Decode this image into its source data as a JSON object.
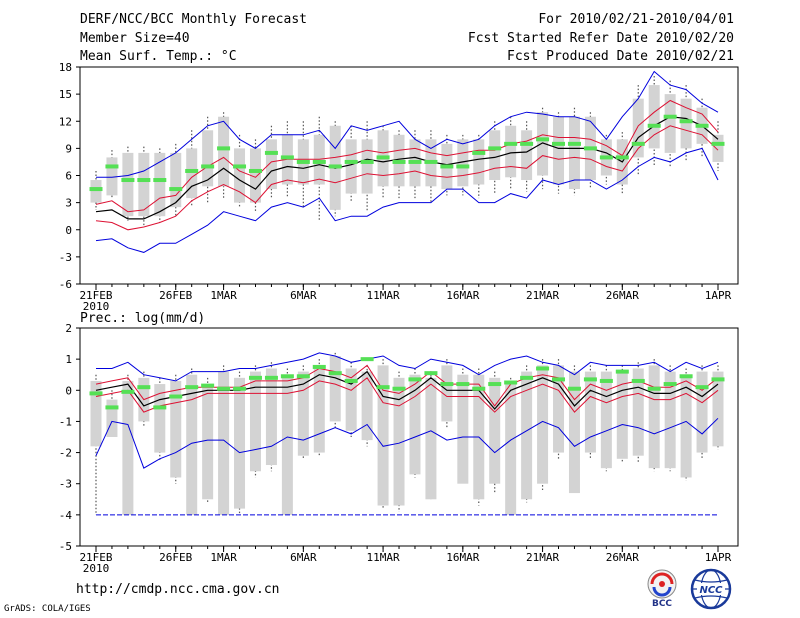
{
  "header": {
    "title": "DERF/NCC/BCC Monthly Forecast",
    "member_size": "Member Size=40",
    "variable": "Mean Surf. Temp.: °C",
    "period": "For 2010/02/21-2010/04/01",
    "started": "Fcst Started Refer Date 2010/02/20",
    "produced": "Fcst Produced Date 2010/02/21"
  },
  "footer": {
    "url": "http://cmdp.ncc.cma.gov.cn",
    "grads": "GrADS: COLA/IGES",
    "logo_bcc": "BCC",
    "logo_ncc": "NCC"
  },
  "colors": {
    "box": "#d3d3d3",
    "whisker": "#555555",
    "median": "#55e055",
    "mean": "#000000",
    "sd": "#dd1133",
    "minmax": "#0000dd",
    "frame": "#000000"
  },
  "chart_data": [
    {
      "type": "box-ensemble",
      "title": "Mean Surf. Temp.: °C",
      "ylim": [
        -6,
        18
      ],
      "yticks": [
        "18",
        "15",
        "12",
        "9",
        "6",
        "3",
        "0",
        "-3",
        "-6"
      ],
      "xtick_labels": [
        {
          "day": 0,
          "label": "21FEB",
          "sub": "2010"
        },
        {
          "day": 5,
          "label": "26FEB"
        },
        {
          "day": 8,
          "label": "1MAR"
        },
        {
          "day": 13,
          "label": "6MAR"
        },
        {
          "day": 18,
          "label": "11MAR"
        },
        {
          "day": 23,
          "label": "16MAR"
        },
        {
          "day": 28,
          "label": "21MAR"
        },
        {
          "day": 33,
          "label": "26MAR"
        },
        {
          "day": 39,
          "label": "1APR"
        }
      ],
      "box_low": [
        3.0,
        3.8,
        1.5,
        1.5,
        1.5,
        2.5,
        3.5,
        4.8,
        4.8,
        3.0,
        3.0,
        4.5,
        5.0,
        5.0,
        5.0,
        2.2,
        4.0,
        4.0,
        4.8,
        4.8,
        4.8,
        4.8,
        4.5,
        4.8,
        5.0,
        5.5,
        5.8,
        5.5,
        6.0,
        5.0,
        4.5,
        5.5,
        6.0,
        5.0,
        8.0,
        9.0,
        8.5,
        9.0,
        9.5,
        7.5
      ],
      "box_high": [
        5.5,
        8.0,
        8.5,
        8.5,
        8.5,
        8.5,
        9.0,
        11.0,
        12.5,
        9.0,
        9.0,
        10.0,
        10.5,
        10.0,
        10.5,
        11.5,
        10.0,
        10.0,
        11.0,
        10.5,
        10.0,
        10.0,
        9.5,
        10.0,
        10.0,
        11.0,
        11.5,
        11.0,
        13.0,
        12.5,
        12.5,
        12.5,
        10.0,
        10.0,
        14.5,
        16.0,
        15.0,
        14.5,
        13.5,
        10.5
      ],
      "whisker_low": [
        2.2,
        3.5,
        1.0,
        0.5,
        0.8,
        1.5,
        2.5,
        3.0,
        3.5,
        2.5,
        2.0,
        3.5,
        3.5,
        2.5,
        1.0,
        1.5,
        3.0,
        2.0,
        3.5,
        3.5,
        3.5,
        3.0,
        3.8,
        3.8,
        3.5,
        4.0,
        4.5,
        4.2,
        4.5,
        4.0,
        3.8,
        4.5,
        5.0,
        4.0,
        6.0,
        7.0,
        7.0,
        7.5,
        8.0,
        6.5
      ],
      "whisker_high": [
        6.5,
        8.8,
        9.2,
        9.2,
        9.0,
        9.5,
        11.0,
        12.5,
        13.0,
        10.5,
        10.0,
        11.5,
        12.0,
        12.0,
        12.5,
        12.0,
        11.5,
        12.0,
        11.5,
        11.0,
        11.0,
        11.0,
        10.5,
        10.5,
        10.5,
        12.0,
        12.5,
        12.0,
        13.5,
        13.0,
        13.5,
        13.0,
        10.5,
        10.8,
        16.0,
        17.0,
        16.5,
        16.0,
        14.5,
        12.0
      ],
      "median": [
        4.5,
        7.0,
        5.5,
        5.5,
        5.5,
        4.5,
        6.5,
        7.0,
        9.0,
        7.0,
        6.5,
        8.5,
        8.0,
        7.5,
        7.5,
        7.0,
        7.5,
        7.5,
        8.0,
        7.5,
        7.5,
        7.5,
        7.0,
        7.0,
        8.5,
        9.0,
        9.5,
        9.5,
        10.0,
        9.5,
        9.5,
        9.0,
        8.0,
        8.0,
        9.5,
        11.5,
        12.5,
        12.0,
        11.5,
        9.5
      ],
      "mean": [
        2.0,
        2.2,
        1.2,
        1.2,
        2.0,
        3.0,
        4.8,
        5.5,
        6.8,
        5.5,
        4.5,
        6.5,
        7.0,
        6.8,
        7.2,
        6.8,
        7.2,
        7.8,
        7.5,
        7.8,
        8.0,
        7.5,
        7.2,
        7.5,
        7.8,
        8.0,
        8.5,
        8.6,
        9.6,
        9.0,
        9.0,
        9.0,
        8.5,
        7.5,
        10.2,
        11.5,
        12.5,
        12.3,
        11.5,
        10.0
      ],
      "sd_high": [
        2.8,
        3.2,
        2.0,
        2.2,
        3.5,
        3.8,
        5.8,
        7.0,
        8.0,
        6.5,
        5.8,
        7.5,
        7.8,
        7.8,
        7.8,
        8.0,
        8.3,
        8.8,
        8.5,
        8.8,
        9.0,
        8.5,
        8.2,
        8.5,
        8.8,
        8.8,
        9.5,
        9.8,
        10.5,
        10.2,
        10.2,
        10.0,
        9.3,
        8.2,
        11.5,
        13.0,
        14.3,
        13.5,
        12.8,
        10.8
      ],
      "sd_low": [
        1.0,
        0.8,
        0.0,
        0.3,
        0.8,
        1.5,
        3.2,
        4.2,
        5.0,
        4.2,
        3.0,
        5.0,
        5.5,
        5.2,
        5.6,
        5.2,
        5.7,
        6.2,
        6.0,
        6.2,
        6.5,
        6.0,
        5.8,
        6.0,
        6.3,
        6.8,
        7.0,
        6.8,
        8.2,
        7.8,
        8.0,
        7.8,
        7.0,
        6.5,
        9.0,
        10.5,
        11.5,
        11.0,
        10.5,
        8.8
      ],
      "max": [
        5.8,
        5.8,
        6.0,
        6.5,
        7.5,
        8.5,
        10.0,
        11.5,
        12.0,
        10.0,
        9.0,
        10.5,
        10.5,
        10.5,
        11.0,
        9.0,
        11.5,
        11.0,
        11.5,
        12.0,
        10.0,
        9.0,
        10.0,
        9.5,
        10.0,
        11.5,
        12.5,
        13.0,
        12.8,
        12.5,
        12.5,
        12.0,
        10.0,
        12.5,
        14.5,
        17.5,
        16.0,
        15.5,
        14.0,
        13.0
      ],
      "min": [
        -1.2,
        -1.0,
        -2.0,
        -2.5,
        -1.5,
        -1.5,
        -0.5,
        0.5,
        2.0,
        1.5,
        1.0,
        2.5,
        3.0,
        2.5,
        3.5,
        1.0,
        1.5,
        1.5,
        2.5,
        3.0,
        3.0,
        3.0,
        4.5,
        4.5,
        3.0,
        3.0,
        4.0,
        3.5,
        5.5,
        5.0,
        5.5,
        5.5,
        4.5,
        5.5,
        7.0,
        8.0,
        7.5,
        8.5,
        9.0,
        5.5
      ]
    },
    {
      "type": "box-ensemble",
      "title": "Prec.: log(mm/d)",
      "ylim": [
        -5,
        2
      ],
      "yticks": [
        "2",
        "1",
        "0",
        "-1",
        "-2",
        "-3",
        "-4",
        "-5"
      ],
      "xtick_labels": [
        {
          "day": 0,
          "label": "21FEB",
          "sub": "2010"
        },
        {
          "day": 5,
          "label": "26FEB"
        },
        {
          "day": 8,
          "label": "1MAR"
        },
        {
          "day": 13,
          "label": "6MAR"
        },
        {
          "day": 18,
          "label": "11MAR"
        },
        {
          "day": 23,
          "label": "16MAR"
        },
        {
          "day": 28,
          "label": "21MAR"
        },
        {
          "day": 33,
          "label": "26MAR"
        },
        {
          "day": 39,
          "label": "1APR"
        }
      ],
      "box_low": [
        -1.8,
        -1.5,
        -4.0,
        -1.0,
        -2.0,
        -2.8,
        -4.0,
        -3.5,
        -4.0,
        -3.8,
        -2.6,
        -2.4,
        -4.0,
        -2.1,
        -2.0,
        -1.0,
        -1.3,
        -1.6,
        -3.7,
        -3.7,
        -2.7,
        -3.5,
        -1.0,
        -3.0,
        -3.5,
        -3.0,
        -4.0,
        -3.5,
        -3.0,
        -2.0,
        -3.3,
        -2.0,
        -2.5,
        -2.2,
        -2.1,
        -2.5,
        -2.5,
        -2.8,
        -2.0,
        -1.8
      ],
      "box_high": [
        0.3,
        -0.3,
        0.3,
        0.4,
        0.2,
        0.3,
        0.5,
        0.2,
        0.6,
        0.4,
        0.6,
        0.7,
        0.5,
        0.6,
        0.8,
        1.1,
        0.7,
        0.6,
        0.8,
        0.4,
        0.5,
        0.4,
        0.8,
        0.5,
        0.5,
        0.4,
        0.2,
        0.6,
        0.8,
        0.8,
        0.6,
        0.6,
        0.6,
        0.6,
        0.7,
        0.8,
        0.6,
        0.5,
        0.6,
        0.6
      ],
      "whisker_low": [
        -4.0,
        -1.5,
        -4.0,
        -1.2,
        -2.3,
        -3.0,
        -4.0,
        -3.6,
        -4.0,
        -4.0,
        -2.8,
        -2.6,
        -4.0,
        -2.2,
        -2.1,
        -1.2,
        -1.5,
        -1.8,
        -3.8,
        -3.9,
        -2.8,
        -3.5,
        -1.2,
        -3.0,
        -3.7,
        -3.3,
        -4.0,
        -3.6,
        -3.2,
        -2.2,
        -3.3,
        -2.2,
        -2.6,
        -2.3,
        -2.3,
        -2.6,
        -2.6,
        -2.9,
        -2.2,
        -1.9
      ],
      "whisker_high": [
        0.5,
        0.0,
        0.5,
        0.6,
        0.4,
        0.5,
        0.7,
        0.4,
        0.8,
        0.6,
        0.8,
        0.9,
        0.7,
        0.8,
        1.0,
        1.2,
        0.9,
        0.8,
        1.0,
        0.6,
        0.7,
        0.6,
        1.0,
        0.7,
        0.7,
        0.6,
        0.4,
        0.8,
        1.0,
        1.0,
        0.8,
        0.8,
        0.8,
        0.8,
        0.9,
        1.0,
        0.8,
        0.7,
        0.8,
        0.8
      ],
      "median": [
        -0.1,
        -0.55,
        -0.05,
        0.1,
        -0.55,
        -0.2,
        0.1,
        0.15,
        0.05,
        0.05,
        0.4,
        0.4,
        0.45,
        0.45,
        0.75,
        0.55,
        0.3,
        1.0,
        0.1,
        0.05,
        0.35,
        0.55,
        0.2,
        0.2,
        0.05,
        0.2,
        0.25,
        0.4,
        0.7,
        0.35,
        0.05,
        0.35,
        0.3,
        0.6,
        0.3,
        0.05,
        0.2,
        0.45,
        0.1,
        0.35
      ],
      "mean": [
        0.0,
        0.1,
        0.2,
        -0.5,
        -0.3,
        -0.2,
        -0.1,
        0.0,
        0.0,
        0.0,
        0.1,
        0.1,
        0.1,
        0.2,
        0.5,
        0.4,
        0.2,
        0.6,
        -0.2,
        -0.3,
        0.0,
        0.4,
        0.0,
        0.0,
        0.0,
        -0.6,
        0.0,
        0.2,
        0.4,
        0.2,
        -0.5,
        0.0,
        -0.2,
        0.0,
        0.1,
        -0.1,
        -0.1,
        0.1,
        -0.2,
        0.2
      ],
      "sd_high": [
        0.2,
        0.3,
        0.4,
        -0.3,
        -0.1,
        0.0,
        0.1,
        0.1,
        0.1,
        0.1,
        0.3,
        0.3,
        0.3,
        0.4,
        0.7,
        0.6,
        0.4,
        0.8,
        0.0,
        -0.1,
        0.2,
        0.6,
        0.2,
        0.2,
        0.2,
        -0.5,
        0.2,
        0.4,
        0.5,
        0.4,
        -0.3,
        0.2,
        0.0,
        0.2,
        0.3,
        0.1,
        0.1,
        0.3,
        0.0,
        0.4
      ],
      "sd_low": [
        -0.2,
        -0.1,
        0.0,
        -0.7,
        -0.5,
        -0.4,
        -0.3,
        -0.1,
        -0.1,
        -0.1,
        -0.1,
        -0.1,
        -0.1,
        0.0,
        0.3,
        0.2,
        0.0,
        0.4,
        -0.4,
        -0.5,
        -0.2,
        0.2,
        -0.2,
        -0.2,
        -0.2,
        -0.7,
        -0.2,
        0.0,
        0.2,
        0.0,
        -0.7,
        -0.2,
        -0.4,
        -0.2,
        -0.1,
        -0.3,
        -0.3,
        -0.1,
        -0.4,
        0.0
      ],
      "max": [
        0.7,
        0.7,
        0.9,
        0.5,
        0.4,
        0.3,
        0.6,
        0.6,
        0.6,
        0.7,
        0.7,
        0.8,
        0.9,
        1.0,
        1.2,
        1.1,
        0.9,
        1.0,
        1.1,
        0.8,
        0.7,
        1.0,
        0.9,
        0.8,
        0.5,
        0.8,
        1.0,
        1.1,
        0.9,
        0.8,
        0.5,
        0.9,
        0.8,
        0.8,
        0.8,
        0.9,
        0.6,
        0.9,
        0.7,
        0.9
      ],
      "min": [
        -2.1,
        -1.0,
        -1.1,
        -2.5,
        -2.2,
        -2.0,
        -1.7,
        -1.6,
        -1.6,
        -2.0,
        -1.9,
        -1.8,
        -1.5,
        -1.6,
        -1.4,
        -1.2,
        -1.4,
        -1.1,
        -1.8,
        -1.7,
        -1.5,
        -1.3,
        -1.6,
        -1.5,
        -1.5,
        -2.0,
        -1.6,
        -1.3,
        -1.0,
        -1.2,
        -1.8,
        -1.5,
        -1.3,
        -1.1,
        -1.2,
        -1.4,
        -1.2,
        -1.0,
        -1.4,
        -0.9
      ],
      "extra_lines": [
        {
          "value": -4,
          "color": "#0000dd",
          "style": "dash"
        }
      ]
    }
  ]
}
